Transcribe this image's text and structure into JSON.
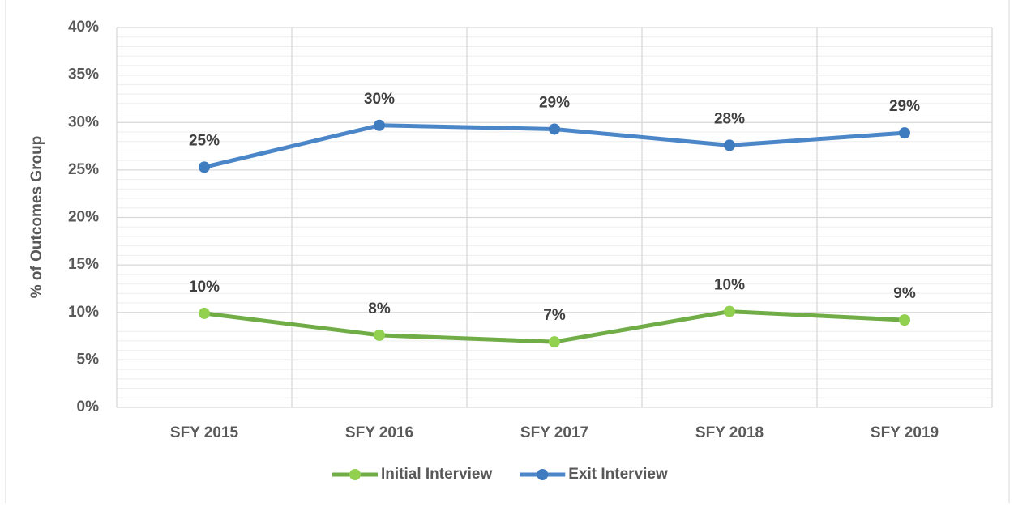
{
  "chart_data": {
    "type": "line",
    "y_label": "% of Outcomes Group",
    "categories": [
      "SFY 2015",
      "SFY 2016",
      "SFY 2017",
      "SFY 2018",
      "SFY 2019"
    ],
    "series": [
      {
        "name": "Initial Interview",
        "color": "#70ad47",
        "marker_color": "#92d050",
        "values": [
          9.9,
          7.6,
          6.9,
          10.1,
          9.2
        ],
        "value_labels": [
          "10%",
          "8%",
          "7%",
          "10%",
          "9%"
        ]
      },
      {
        "name": "Exit Interview",
        "color": "#4a86c8",
        "marker_color": "#3f7bbf",
        "values": [
          25.3,
          29.7,
          29.3,
          27.6,
          28.9
        ],
        "value_labels": [
          "25%",
          "30%",
          "29%",
          "28%",
          "29%"
        ]
      }
    ],
    "ylim": [
      0,
      40
    ],
    "yticks": [
      {
        "value": 0,
        "label": "0%"
      },
      {
        "value": 5,
        "label": "5%"
      },
      {
        "value": 10,
        "label": "10%"
      },
      {
        "value": 15,
        "label": "15%"
      },
      {
        "value": 20,
        "label": "20%"
      },
      {
        "value": 25,
        "label": "25%"
      },
      {
        "value": 30,
        "label": "30%"
      },
      {
        "value": 35,
        "label": "35%"
      },
      {
        "value": 40,
        "label": "40%"
      }
    ],
    "grid": true,
    "minor_grid": true,
    "legend": "bottom"
  }
}
